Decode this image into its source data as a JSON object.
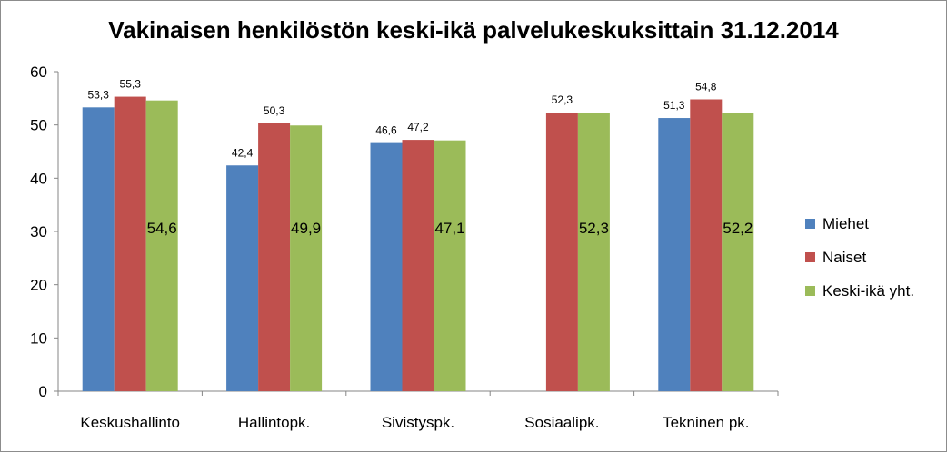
{
  "chart_data": {
    "type": "bar",
    "title": "Vakinaisen henkilöstön keski-ikä palvelukeskuksittain 31.12.2014",
    "categories": [
      "Keskushallinto",
      "Hallintopk.",
      "Sivistyspk.",
      "Sosiaalipk.",
      "Tekninen pk."
    ],
    "series": [
      {
        "name": "Miehet",
        "color": "#4f81bd",
        "values": [
          53.3,
          42.4,
          46.6,
          null,
          51.3
        ]
      },
      {
        "name": "Naiset",
        "color": "#c0504d",
        "values": [
          55.3,
          50.3,
          47.2,
          52.3,
          54.8
        ]
      },
      {
        "name": "Keski-ikä yht.",
        "color": "#9bbb59",
        "values": [
          54.6,
          49.9,
          47.1,
          52.3,
          52.2
        ]
      }
    ],
    "labels": [
      [
        "53,3",
        "42,4",
        "46,6",
        "",
        "51,3"
      ],
      [
        "55,3",
        "50,3",
        "47,2",
        "52,3",
        "54,8"
      ],
      [
        "54,6",
        "49,9",
        "47,1",
        "52,3",
        "52,2"
      ]
    ],
    "ylim": [
      0,
      60
    ],
    "yticks": [
      0,
      10,
      20,
      30,
      40,
      50,
      60
    ],
    "grid": false,
    "legend_position": "right"
  }
}
